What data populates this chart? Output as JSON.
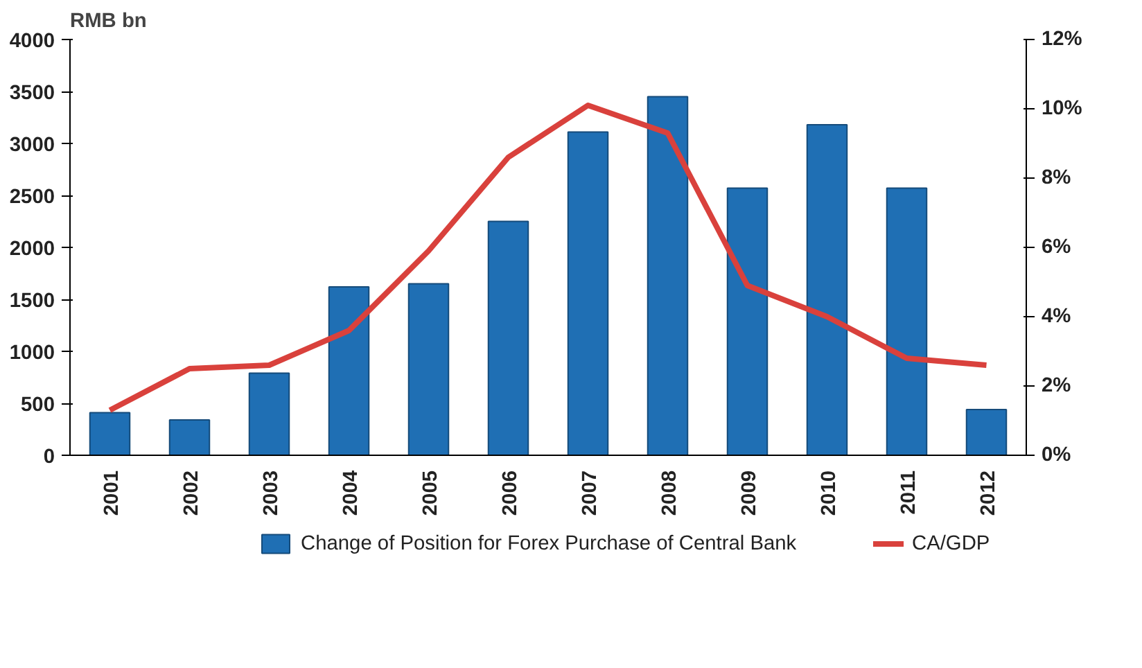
{
  "chart_data": {
    "type": "bar",
    "ylabel": "RMB bn",
    "categories": [
      "2001",
      "2002",
      "2003",
      "2004",
      "2005",
      "2006",
      "2007",
      "2008",
      "2009",
      "2010",
      "2011",
      "2012"
    ],
    "series": [
      {
        "name": "Change of Position for Forex Purchase of Central Bank",
        "color": "#1f6fb4",
        "values": [
          410,
          340,
          790,
          1620,
          1650,
          2250,
          3110,
          3450,
          2570,
          3180,
          2570,
          440
        ]
      },
      {
        "name": "CA/GDP",
        "type": "line",
        "axis": "y2",
        "color": "#d9413c",
        "values": [
          1.3,
          2.5,
          2.6,
          3.6,
          5.9,
          8.6,
          10.1,
          9.3,
          4.9,
          4.0,
          2.8,
          2.6
        ]
      }
    ],
    "ylim": [
      0,
      4000
    ],
    "yticks": [
      0,
      500,
      1000,
      1500,
      2000,
      2500,
      3000,
      3500,
      4000
    ],
    "y2lim": [
      0,
      12
    ],
    "y2ticks": [
      {
        "value": 0,
        "label": "0%"
      },
      {
        "value": 2,
        "label": "2%"
      },
      {
        "value": 4,
        "label": "4%"
      },
      {
        "value": 6,
        "label": "6%"
      },
      {
        "value": 8,
        "label": "8%"
      },
      {
        "value": 10,
        "label": "10%"
      },
      {
        "value": 12,
        "label": "12%"
      }
    ],
    "grid": false,
    "legend": "bottom",
    "line_style": "solid",
    "marker": "none"
  }
}
